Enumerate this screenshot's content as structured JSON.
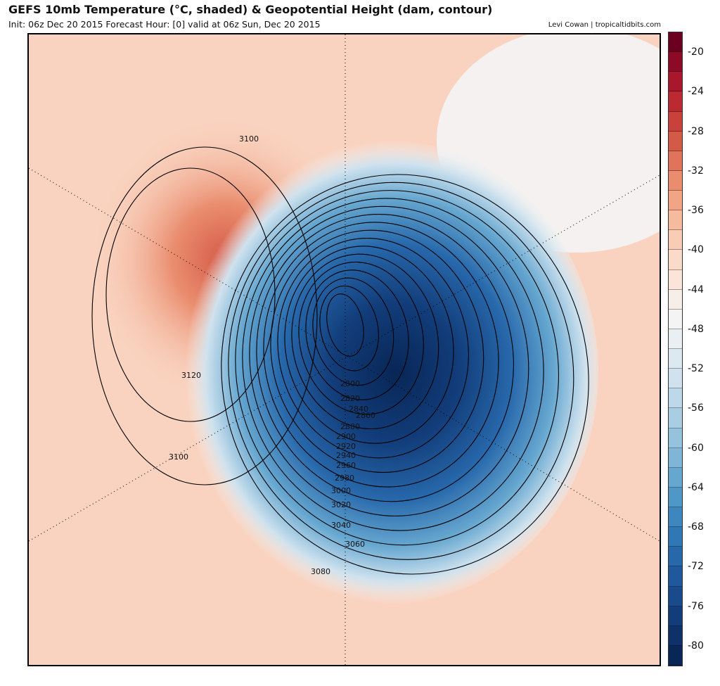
{
  "header": {
    "title": "GEFS 10mb Temperature (°C, shaded) & Geopotential Height (dam, contour)",
    "subtitle": "Init: 06z Dec 20 2015   Forecast Hour: [0]   valid at 06z Sun, Dec 20 2015",
    "credit": "Levi Cowan | tropicaltidbits.com"
  },
  "colorbar": {
    "labels": [
      "-20",
      "-24",
      "-28",
      "-32",
      "-36",
      "-40",
      "-44",
      "-48",
      "-52",
      "-56",
      "-60",
      "-64",
      "-68",
      "-72",
      "-76",
      "-80"
    ],
    "colors": [
      "#6b0020",
      "#8c0a26",
      "#a8172c",
      "#bb2a33",
      "#c8413b",
      "#d45a48",
      "#e0735a",
      "#ea8d6f",
      "#f2a585",
      "#f6bb9f",
      "#f9ccb5",
      "#fbdac9",
      "#fbe5da",
      "#f7ede9",
      "#f4f4f4",
      "#e9eff3",
      "#dce9f0",
      "#cfe2ee",
      "#bcd8ea",
      "#a9cee4",
      "#95c3de",
      "#7fb5d7",
      "#66a7d0",
      "#4f97c7",
      "#3d87be",
      "#3078b5",
      "#2768ab",
      "#1f589d",
      "#184a8c",
      "#123d7a",
      "#0d3168",
      "#082656"
    ]
  },
  "contours": {
    "levels": [
      2780,
      2800,
      2820,
      2840,
      2860,
      2880,
      2900,
      2920,
      2940,
      2960,
      2980,
      3000,
      3020,
      3040,
      3060,
      3080
    ],
    "labels": [
      "2800",
      "2820",
      "2840",
      "2860",
      "2880",
      "2900",
      "2920",
      "2940",
      "2960",
      "2980",
      "3000",
      "3020",
      "3040",
      "3060",
      "3080",
      "3100",
      "3120",
      "3100"
    ]
  }
}
